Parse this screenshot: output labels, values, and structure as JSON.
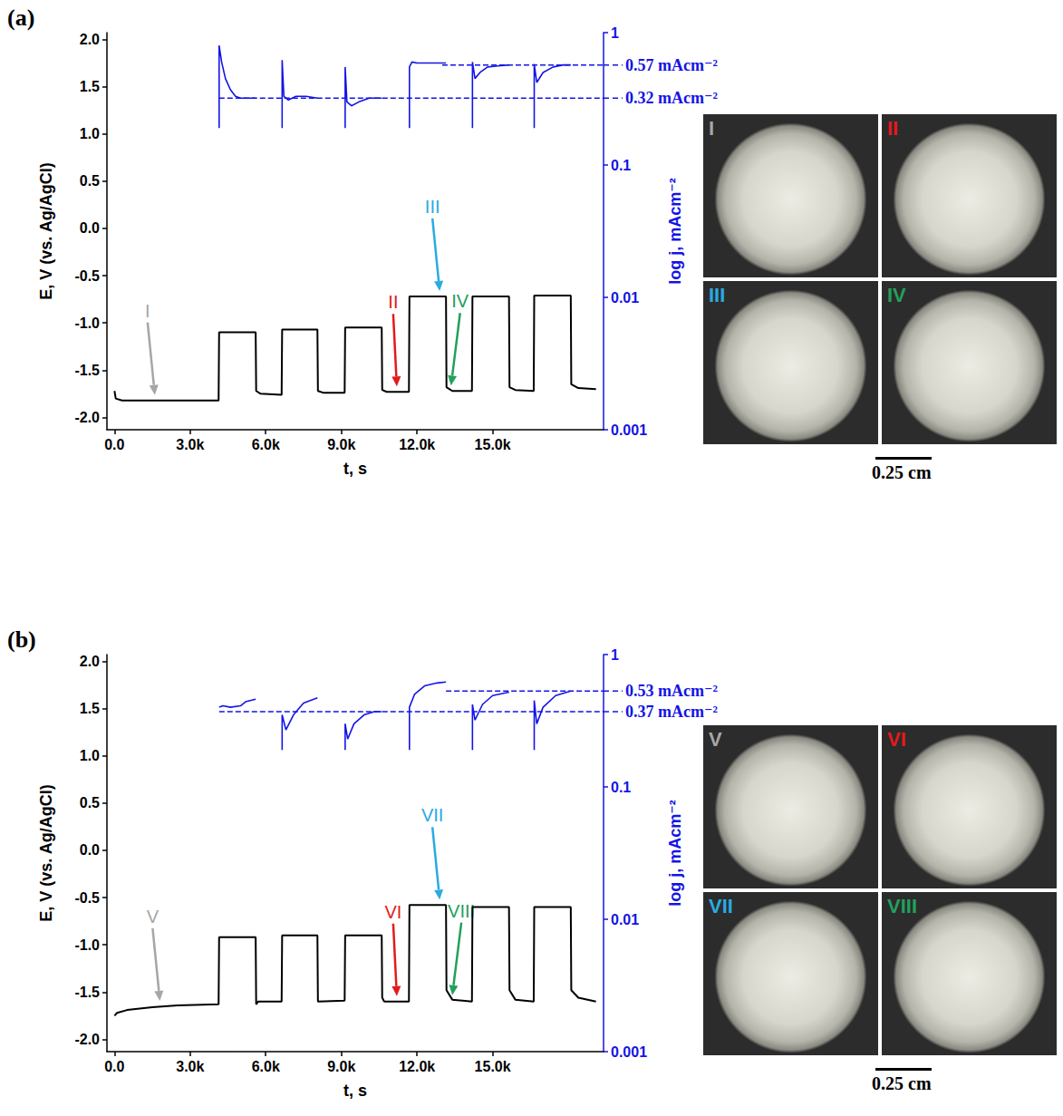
{
  "chart_data": [
    {
      "type": "line",
      "panel_label": "(a)",
      "x_label": "t, s",
      "y_label": "E, V (vs. Ag/AgCl)",
      "y2_label": "log j, mAcm⁻²",
      "log": "y2",
      "grid": false,
      "xlim": [
        -300,
        19400
      ],
      "xticks": [
        {
          "value": 0,
          "label": "0.0"
        },
        {
          "value": 3000,
          "label": "3.0k"
        },
        {
          "value": 6000,
          "label": "6.0k"
        },
        {
          "value": 9000,
          "label": "9.0k"
        },
        {
          "value": 12000,
          "label": "12.0k"
        },
        {
          "value": 15000,
          "label": "15.0k"
        }
      ],
      "ylim": [
        -2.13,
        2.07
      ],
      "yticks": [
        {
          "value": -2,
          "label": "-2.0"
        },
        {
          "value": -1.5,
          "label": "-1.5"
        },
        {
          "value": -1,
          "label": "-1.0"
        },
        {
          "value": -0.5,
          "label": "-0.5"
        },
        {
          "value": 0,
          "label": "0.0"
        },
        {
          "value": 0.5,
          "label": "0.5"
        },
        {
          "value": 1,
          "label": "1.0"
        },
        {
          "value": 1.5,
          "label": "1.5"
        },
        {
          "value": 2,
          "label": "2.0"
        }
      ],
      "y2lim": [
        0.001,
        1
      ],
      "y2ticks": [
        0.001,
        0.01,
        0.1,
        1
      ],
      "series": [
        {
          "color": "#000000",
          "line_style": "solid",
          "marker": "none",
          "x": [
            0,
            50,
            300,
            4130,
            4150,
            5600,
            5620,
            5800,
            6630,
            6650,
            8050,
            8070,
            8300,
            9130,
            9150,
            10600,
            10620,
            10800,
            11680,
            11700,
            13150,
            13170,
            13400,
            14180,
            14200,
            15650,
            15670,
            15900,
            16630,
            16650,
            18100,
            18120,
            18400,
            19100
          ],
          "values": [
            -1.72,
            -1.8,
            -1.82,
            -1.82,
            -1.1,
            -1.1,
            -1.72,
            -1.75,
            -1.76,
            -1.07,
            -1.07,
            -1.72,
            -1.74,
            -1.74,
            -1.05,
            -1.05,
            -1.71,
            -1.73,
            -1.73,
            -0.72,
            -0.72,
            -1.68,
            -1.72,
            -1.72,
            -0.72,
            -0.72,
            -1.68,
            -1.71,
            -1.72,
            -0.71,
            -0.71,
            -1.65,
            -1.69,
            -1.7
          ]
        },
        {
          "color": "#1414e6",
          "line_style": "solid",
          "marker": "none",
          "axis": "y2",
          "x": [
            4150,
            4150,
            4250,
            4400,
            4600,
            4800,
            5000,
            5200,
            5600,
            6100,
            6650,
            6650,
            6720,
            6900,
            7200,
            7600,
            8050,
            8600,
            9150,
            9150,
            9220,
            9400,
            9700,
            10100,
            10600,
            11150,
            11700,
            11700,
            11800,
            12000,
            12500,
            13150,
            13700,
            14200,
            14200,
            14300,
            14500,
            14800,
            15200,
            15650,
            16150,
            16650,
            16650,
            16750,
            17000,
            17400,
            17800,
            18100
          ],
          "values": [
            0.19,
            0.8,
            0.6,
            0.45,
            0.37,
            0.33,
            0.32,
            0.32,
            0.32,
            null,
            0.19,
            0.62,
            0.33,
            0.31,
            0.33,
            0.33,
            0.32,
            null,
            0.19,
            0.55,
            0.3,
            0.28,
            0.3,
            0.32,
            0.32,
            null,
            0.19,
            0.55,
            0.6,
            0.59,
            0.59,
            0.59,
            null,
            0.19,
            0.6,
            0.45,
            0.5,
            0.55,
            0.56,
            0.57,
            null,
            0.19,
            0.58,
            0.42,
            0.5,
            0.55,
            0.57,
            0.57
          ]
        }
      ],
      "reference_lines": [
        {
          "value": 0.57,
          "from": 13000,
          "axis": "y2",
          "label": "0.57 mAcm⁻²",
          "color": "#1414e6",
          "line_style": "dashed"
        },
        {
          "value": 0.32,
          "from": 4150,
          "axis": "y2",
          "label": "0.32 mAcm⁻²",
          "color": "#1414e6",
          "line_style": "dashed"
        }
      ],
      "arrows": [
        {
          "label": "I",
          "x": 1600,
          "y": -1.82,
          "color": "#a6a6a6"
        },
        {
          "label": "II",
          "x": 11200,
          "y": -1.73,
          "color": "#e31a1c"
        },
        {
          "label": "III",
          "x": 12900,
          "y": -0.72,
          "color": "#29abe2"
        },
        {
          "label": "IV",
          "x": 13350,
          "y": -1.72,
          "color": "#22a05a"
        }
      ],
      "images": [
        {
          "label": "I",
          "color": "#a6a6a6"
        },
        {
          "label": "II",
          "color": "#e31a1c"
        },
        {
          "label": "III",
          "color": "#29abe2"
        },
        {
          "label": "IV",
          "color": "#22a05a"
        }
      ],
      "scale_bar": "0.25 cm"
    },
    {
      "type": "line",
      "panel_label": "(b)",
      "x_label": "t, s",
      "y_label": "E, V (vs. Ag/AgCl)",
      "y2_label": "log j, mAcm⁻²",
      "log": "y2",
      "grid": false,
      "xlim": [
        -300,
        19400
      ],
      "xticks": [
        {
          "value": 0,
          "label": "0.0"
        },
        {
          "value": 3000,
          "label": "3.0k"
        },
        {
          "value": 6000,
          "label": "6.0k"
        },
        {
          "value": 9000,
          "label": "9.0k"
        },
        {
          "value": 12000,
          "label": "12.0k"
        },
        {
          "value": 15000,
          "label": "15.0k"
        }
      ],
      "ylim": [
        -2.13,
        2.07
      ],
      "yticks": [
        {
          "value": -2,
          "label": "-2.0"
        },
        {
          "value": -1.5,
          "label": "-1.5"
        },
        {
          "value": -1,
          "label": "-1.0"
        },
        {
          "value": -0.5,
          "label": "-0.5"
        },
        {
          "value": 0,
          "label": "0.0"
        },
        {
          "value": 0.5,
          "label": "0.5"
        },
        {
          "value": 1,
          "label": "1.0"
        },
        {
          "value": 1.5,
          "label": "1.5"
        },
        {
          "value": 2,
          "label": "2.0"
        }
      ],
      "y2lim": [
        0.001,
        1
      ],
      "y2ticks": [
        0.001,
        0.01,
        0.1,
        1
      ],
      "series": [
        {
          "color": "#000000",
          "line_style": "solid",
          "marker": "none",
          "x": [
            0,
            100,
            500,
            1500,
            2500,
            4130,
            4150,
            5600,
            5620,
            5700,
            6630,
            6650,
            8050,
            8070,
            9130,
            9150,
            10600,
            10620,
            10700,
            11680,
            11700,
            13150,
            13170,
            13400,
            14180,
            14200,
            15650,
            15670,
            15900,
            16630,
            16650,
            18100,
            18120,
            18400,
            19100
          ],
          "values": [
            -1.75,
            -1.72,
            -1.69,
            -1.66,
            -1.64,
            -1.63,
            -0.92,
            -0.92,
            -1.63,
            -1.6,
            -1.6,
            -0.9,
            -0.9,
            -1.6,
            -1.59,
            -0.9,
            -0.9,
            -1.56,
            -1.6,
            -1.6,
            -0.58,
            -0.58,
            -1.48,
            -1.58,
            -1.6,
            -0.6,
            -0.6,
            -1.48,
            -1.58,
            -1.6,
            -0.6,
            -0.6,
            -1.48,
            -1.56,
            -1.6
          ]
        },
        {
          "color": "#1414e6",
          "line_style": "solid",
          "marker": "none",
          "axis": "y2",
          "x": [
            4150,
            4300,
            4600,
            5000,
            5200,
            5600,
            6100,
            6650,
            6650,
            6800,
            7100,
            7500,
            8050,
            8600,
            9150,
            9150,
            9250,
            9500,
            9900,
            10300,
            10600,
            11150,
            11700,
            11700,
            11900,
            12300,
            12800,
            13150,
            13700,
            14200,
            14200,
            14300,
            14600,
            15000,
            15650,
            16150,
            16650,
            16650,
            16750,
            17000,
            17500,
            18100
          ],
          "values": [
            0.4,
            0.41,
            0.4,
            0.41,
            0.44,
            0.46,
            null,
            0.19,
            0.35,
            0.27,
            0.35,
            0.43,
            0.47,
            null,
            0.19,
            0.3,
            0.23,
            0.3,
            0.35,
            0.37,
            0.37,
            null,
            0.19,
            0.4,
            0.5,
            0.58,
            0.61,
            0.62,
            null,
            0.19,
            0.42,
            0.32,
            0.42,
            0.49,
            0.52,
            null,
            0.19,
            0.45,
            0.3,
            0.4,
            0.49,
            0.53
          ]
        }
      ],
      "reference_lines": [
        {
          "value": 0.53,
          "from": 13150,
          "axis": "y2",
          "label": "0.53 mAcm⁻²",
          "color": "#1414e6",
          "line_style": "dashed"
        },
        {
          "value": 0.37,
          "from": 4150,
          "axis": "y2",
          "label": "0.37 mAcm⁻²",
          "color": "#1414e6",
          "line_style": "dashed"
        }
      ],
      "arrows": [
        {
          "label": "V",
          "x": 1800,
          "y": -1.65,
          "color": "#a6a6a6"
        },
        {
          "label": "VI",
          "x": 11200,
          "y": -1.6,
          "color": "#e31a1c"
        },
        {
          "label": "VII",
          "x": 12900,
          "y": -0.58,
          "color": "#29abe2"
        },
        {
          "label": "VIII",
          "x": 13400,
          "y": -1.59,
          "color": "#22a05a"
        }
      ],
      "images": [
        {
          "label": "V",
          "color": "#a6a6a6"
        },
        {
          "label": "VI",
          "color": "#e31a1c"
        },
        {
          "label": "VII",
          "color": "#29abe2"
        },
        {
          "label": "VIII",
          "color": "#22a05a"
        }
      ],
      "scale_bar": "0.25 cm"
    }
  ]
}
